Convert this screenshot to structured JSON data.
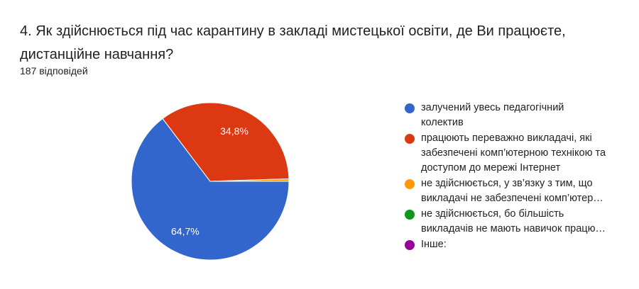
{
  "question": {
    "title": "4. Як здійснюється під час карантину в закладі мистецької освіти, де Ви працюєте, дистанційне навчання?",
    "responses": "187 відповідей"
  },
  "chart_data": {
    "type": "pie",
    "legend_position": "right",
    "slices": [
      {
        "label_lines": [
          "залучений увесь педагогічний",
          "колектив"
        ],
        "value": 64.7,
        "value_label": "64,7%",
        "color": "#3366cc"
      },
      {
        "label_lines": [
          "працюють переважно викладачі, які",
          "забезпечені комп’ютерною технікою та",
          "доступом до мережі Інтернет"
        ],
        "value": 34.8,
        "value_label": "34,8%",
        "color": "#dc3912"
      },
      {
        "label_lines": [
          "не здійснюється, у зв’язку з тим, що",
          "викладачі не забезпечені комп’ютер…"
        ],
        "value": 0.5,
        "value_label": "",
        "color": "#ff9900"
      },
      {
        "label_lines": [
          "не здійснюється, бо більшість",
          "викладачів не мають навичок працю…"
        ],
        "value": 0,
        "value_label": "",
        "color": "#109618"
      },
      {
        "label_lines": [
          "Інше:"
        ],
        "value": 0,
        "value_label": "",
        "color": "#990099"
      }
    ]
  }
}
